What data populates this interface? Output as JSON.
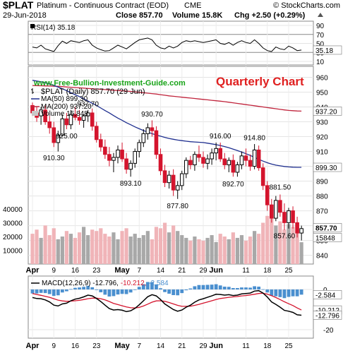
{
  "header": {
    "symbol": "$PLAT",
    "name": "Platinum - Continuous Contract (EOD)",
    "exchange": "CME",
    "brand": "© StockCharts.com",
    "date": "29-Jun-2018",
    "close": "Close 857.70",
    "volume": "Volume 15.8K",
    "change": "Chg +2.50 (+0.29%)",
    "change_arrow": "up-triangle-icon"
  },
  "watermark": "www.Free-Bullion-Investment-Guide.com",
  "chart_title": "Quarterly Chart",
  "colors": {
    "up": "#000000",
    "down": "#d4142d",
    "ma50": "#1f2f8f",
    "ma200": "#c0243c",
    "vol_up": "#a8a8a8",
    "vol_down": "#f0b4b8",
    "macd_hist": "#4a8fcf",
    "title_red": "#e02020",
    "watermark_green": "#17a317"
  },
  "rsi": {
    "label": "RSI(14) 35.18",
    "value_tag": "35.18",
    "ticks": [
      "90",
      "70",
      "50",
      "30",
      "10"
    ]
  },
  "price_legend": {
    "series": "$PLAT (Daily) 857.70 (29 Jun)",
    "ma50": "MA(50) 899.30",
    "ma200": "MA(200) 937.20",
    "volume": "Volume 15,848"
  },
  "price_tags": {
    "ma200": "937.20",
    "ma50": "899.30",
    "last": "857.70",
    "volume": "15848"
  },
  "price_ticks": [
    "960",
    "950",
    "940",
    "930",
    "920",
    "910",
    "900",
    "890",
    "880",
    "870",
    "860",
    "850",
    "840"
  ],
  "volume_ticks": [
    "40000",
    "30000",
    "20000",
    "10000"
  ],
  "macd": {
    "label_prefix": "MACD(12,26,9)",
    "macd_value": "-12.796,",
    "signal_value": "-10.212,",
    "hist_value": "-2.584",
    "ticks": [
      "0",
      "-20"
    ],
    "tags": {
      "hist": "-2.584",
      "signal": "-10.212",
      "macd": "-12.796"
    }
  },
  "x_labels": [
    {
      "label": "Apr",
      "bold": true,
      "i": 0
    },
    {
      "label": "9",
      "bold": false,
      "i": 5
    },
    {
      "label": "16",
      "bold": false,
      "i": 10
    },
    {
      "label": "23",
      "bold": false,
      "i": 15
    },
    {
      "label": "May",
      "bold": true,
      "i": 21
    },
    {
      "label": "7",
      "bold": false,
      "i": 25
    },
    {
      "label": "14",
      "bold": false,
      "i": 30
    },
    {
      "label": "21",
      "bold": false,
      "i": 35
    },
    {
      "label": "29",
      "bold": false,
      "i": 40
    },
    {
      "label": "Jun",
      "bold": true,
      "i": 43
    },
    {
      "label": "11",
      "bold": false,
      "i": 50
    },
    {
      "label": "18",
      "bold": false,
      "i": 55
    },
    {
      "label": "25",
      "bold": false,
      "i": 60
    }
  ],
  "chart_data": {
    "type": "candlestick",
    "annotations": [
      {
        "text": "937.70",
        "i": 13,
        "y": 937.7
      },
      {
        "text": "925.00",
        "i": 8,
        "y": 925.0
      },
      {
        "text": "910.30",
        "i": 5,
        "y": 910.3
      },
      {
        "text": "930.70",
        "i": 28,
        "y": 930.7
      },
      {
        "text": "893.10",
        "i": 23,
        "y": 893.1
      },
      {
        "text": "877.80",
        "i": 34,
        "y": 877.8
      },
      {
        "text": "916.00",
        "i": 44,
        "y": 916.0
      },
      {
        "text": "914.80",
        "i": 52,
        "y": 914.8
      },
      {
        "text": "892.70",
        "i": 47,
        "y": 892.7
      },
      {
        "text": "881.50",
        "i": 58,
        "y": 881.5
      },
      {
        "text": "857.60",
        "i": 59,
        "y": 857.6
      }
    ],
    "candles": [
      [
        941,
        943,
        934,
        936
      ],
      [
        936,
        940,
        930,
        933
      ],
      [
        934,
        940,
        928,
        938
      ],
      [
        938,
        941,
        928,
        930
      ],
      [
        930,
        934,
        922,
        926
      ],
      [
        926,
        930,
        913,
        916
      ],
      [
        916,
        924,
        910,
        921
      ],
      [
        921,
        935,
        920,
        932
      ],
      [
        932,
        936,
        925,
        928
      ],
      [
        928,
        938,
        925,
        935
      ],
      [
        935,
        940,
        931,
        933
      ],
      [
        933,
        938,
        928,
        931
      ],
      [
        931,
        935,
        926,
        934
      ],
      [
        934,
        938,
        930,
        936
      ],
      [
        936,
        939,
        924,
        927
      ],
      [
        927,
        930,
        916,
        918
      ],
      [
        918,
        922,
        910,
        913
      ],
      [
        913,
        918,
        905,
        908
      ],
      [
        908,
        913,
        900,
        904
      ],
      [
        904,
        909,
        896,
        906
      ],
      [
        906,
        914,
        902,
        911
      ],
      [
        911,
        916,
        903,
        905
      ],
      [
        905,
        909,
        895,
        898
      ],
      [
        898,
        904,
        893,
        902
      ],
      [
        902,
        912,
        899,
        910
      ],
      [
        910,
        918,
        906,
        916
      ],
      [
        916,
        925,
        913,
        922
      ],
      [
        922,
        929,
        918,
        926
      ],
      [
        926,
        931,
        920,
        924
      ],
      [
        924,
        927,
        905,
        908
      ],
      [
        908,
        912,
        894,
        897
      ],
      [
        897,
        901,
        886,
        889
      ],
      [
        889,
        897,
        885,
        894
      ],
      [
        894,
        898,
        880,
        884
      ],
      [
        884,
        890,
        878,
        887
      ],
      [
        887,
        897,
        884,
        895
      ],
      [
        895,
        906,
        892,
        904
      ],
      [
        904,
        907,
        898,
        901
      ],
      [
        901,
        910,
        897,
        908
      ],
      [
        908,
        914,
        903,
        906
      ],
      [
        906,
        910,
        899,
        902
      ],
      [
        902,
        908,
        898,
        905
      ],
      [
        905,
        912,
        901,
        909
      ],
      [
        909,
        916,
        904,
        912
      ],
      [
        912,
        916,
        903,
        905
      ],
      [
        905,
        909,
        898,
        901
      ],
      [
        901,
        906,
        896,
        904
      ],
      [
        904,
        908,
        893,
        896
      ],
      [
        896,
        903,
        893,
        901
      ],
      [
        901,
        910,
        898,
        907
      ],
      [
        907,
        912,
        900,
        904
      ],
      [
        904,
        908,
        897,
        900
      ],
      [
        900,
        915,
        898,
        911
      ],
      [
        911,
        914,
        897,
        899
      ],
      [
        899,
        902,
        884,
        887
      ],
      [
        887,
        890,
        870,
        874
      ],
      [
        874,
        878,
        862,
        865
      ],
      [
        865,
        880,
        863,
        877
      ],
      [
        877,
        881,
        866,
        869
      ],
      [
        869,
        875,
        857,
        862
      ],
      [
        862,
        872,
        858,
        870
      ],
      [
        870,
        873,
        858,
        862
      ],
      [
        862,
        866,
        852,
        855
      ],
      [
        855,
        860,
        850,
        858
      ]
    ],
    "volume": [
      22000,
      25000,
      19000,
      28000,
      21000,
      26000,
      18000,
      20000,
      24000,
      22000,
      19000,
      23000,
      27000,
      21000,
      25000,
      24000,
      26000,
      22000,
      20000,
      23000,
      18000,
      24000,
      26000,
      20000,
      22000,
      19000,
      21000,
      24000,
      18000,
      27000,
      26000,
      30000,
      23000,
      28000,
      24000,
      21000,
      19000,
      17000,
      20000,
      18000,
      17000,
      19000,
      21000,
      16000,
      22000,
      20000,
      18000,
      23000,
      19000,
      21000,
      17000,
      20000,
      24000,
      22000,
      30000,
      35000,
      33000,
      28000,
      31000,
      25000,
      29000,
      27000,
      23000,
      15848
    ],
    "ma50": [
      958,
      957.5,
      957,
      956.3,
      955.5,
      954.5,
      953.4,
      952.3,
      951,
      949.6,
      948.3,
      947,
      945.5,
      944,
      942.5,
      941,
      939.3,
      937.6,
      936,
      934.2,
      932.5,
      931,
      929.4,
      928,
      926.6,
      925.3,
      924.1,
      923,
      922,
      921.1,
      920.3,
      919.5,
      918.8,
      918.2,
      917.7,
      917.3,
      916.9,
      916.6,
      916.4,
      916.2,
      916,
      915.6,
      915.1,
      914.6,
      914,
      913.3,
      912.5,
      911.6,
      910.6,
      909.6,
      908.5,
      907.3,
      906,
      904.7,
      903.5,
      902.4,
      901.5,
      900.8,
      900.3,
      899.9,
      899.6,
      899.4,
      899.3,
      899.3
    ],
    "ma200": [
      954.5,
      954.4,
      954.3,
      954.2,
      954.1,
      954,
      953.9,
      953.7,
      953.5,
      953.3,
      953.1,
      952.9,
      952.7,
      952.5,
      952.3,
      952.1,
      951.9,
      951.7,
      951.5,
      951.3,
      951.1,
      950.9,
      950.7,
      950.5,
      950.2,
      949.9,
      949.6,
      949.3,
      949,
      948.7,
      948.3,
      947.9,
      947.5,
      947.2,
      946.9,
      946.6,
      946.3,
      946,
      945.7,
      945.4,
      945.1,
      944.8,
      944.5,
      944.2,
      943.9,
      943.6,
      943.2,
      942.8,
      942.4,
      942,
      941.6,
      941.2,
      940.8,
      940.4,
      940,
      939.6,
      939.2,
      938.8,
      938.4,
      938,
      937.7,
      937.5,
      937.3,
      937.2
    ],
    "rsi": [
      42,
      40,
      46,
      38,
      35,
      32,
      45,
      55,
      50,
      56,
      54,
      52,
      56,
      58,
      46,
      40,
      36,
      33,
      34,
      40,
      46,
      42,
      38,
      45,
      52,
      58,
      60,
      62,
      58,
      46,
      40,
      38,
      44,
      40,
      44,
      52,
      56,
      54,
      56,
      54,
      52,
      54,
      56,
      58,
      50,
      48,
      52,
      46,
      52,
      56,
      52,
      50,
      58,
      50,
      40,
      34,
      32,
      42,
      38,
      36,
      44,
      40,
      34,
      35.18
    ],
    "macd": [
      -4,
      -4.5,
      -4.6,
      -5.2,
      -6.2,
      -7.8,
      -8.2,
      -7.2,
      -6.8,
      -5.6,
      -4.8,
      -4.4,
      -3.7,
      -2.8,
      -3.2,
      -4.5,
      -6,
      -7.8,
      -9.5,
      -10.2,
      -10,
      -10.3,
      -11,
      -10.6,
      -9.4,
      -7.6,
      -5.6,
      -3.6,
      -2.6,
      -3.2,
      -5,
      -7.2,
      -8.6,
      -10,
      -10.8,
      -10.2,
      -8.8,
      -7.8,
      -6.3,
      -5.2,
      -4.6,
      -3.9,
      -3.2,
      -2.4,
      -2.5,
      -2.8,
      -2.6,
      -3,
      -2.8,
      -2.2,
      -2,
      -1.8,
      -0.8,
      -0.6,
      -1.8,
      -3.8,
      -6.2,
      -7.4,
      -8.8,
      -10.4,
      -10.8,
      -11.4,
      -12.6,
      -12.796
    ],
    "signal": [
      -2,
      -2.5,
      -2.9,
      -3.4,
      -3.9,
      -4.6,
      -5.3,
      -5.7,
      -5.9,
      -5.8,
      -5.6,
      -5.4,
      -5,
      -4.6,
      -4.3,
      -4.3,
      -4.6,
      -5.2,
      -6,
      -6.9,
      -7.5,
      -8.1,
      -8.7,
      -9.1,
      -9.2,
      -8.9,
      -8.2,
      -7.3,
      -6.3,
      -5.7,
      -5.6,
      -5.9,
      -6.5,
      -7.2,
      -7.9,
      -8.4,
      -8.4,
      -8.3,
      -7.9,
      -7.4,
      -6.8,
      -6.2,
      -5.6,
      -5,
      -4.5,
      -4.2,
      -3.9,
      -3.7,
      -3.5,
      -3.2,
      -3,
      -2.7,
      -2.4,
      -2,
      -1.9,
      -2.3,
      -3.1,
      -4,
      -5,
      -6.1,
      -7.1,
      -8,
      -9.2,
      -10.212
    ]
  }
}
